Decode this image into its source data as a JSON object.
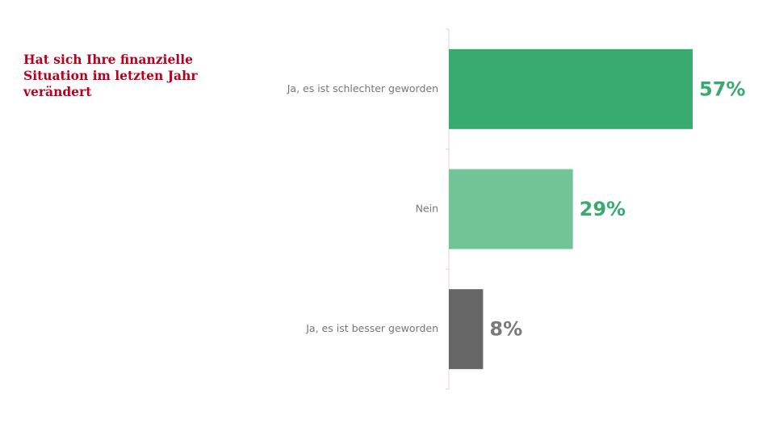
{
  "chart_data": {
    "type": "bar",
    "orientation": "horizontal",
    "title": "Hat sich Ihre finanzielle Situation im letzten Jahr verändert",
    "categories": [
      "Ja, es ist schlechter geworden",
      "Nein",
      "Ja, es ist besser geworden"
    ],
    "values": [
      57,
      29,
      8
    ],
    "value_labels": [
      "57%",
      "29%",
      "8%"
    ],
    "value_unit": "%",
    "xlim": [
      0,
      100
    ],
    "bar_colors": [
      "#37ab6e",
      "#70c496",
      "#666666"
    ],
    "label_colors": [
      "#37ab6e",
      "#37ab6e",
      "#7a7a7a"
    ],
    "grid": false,
    "legend": "none"
  },
  "colors": {
    "title": "#b8001f",
    "axis": "#e6cfd6",
    "category_text": "#777777"
  }
}
